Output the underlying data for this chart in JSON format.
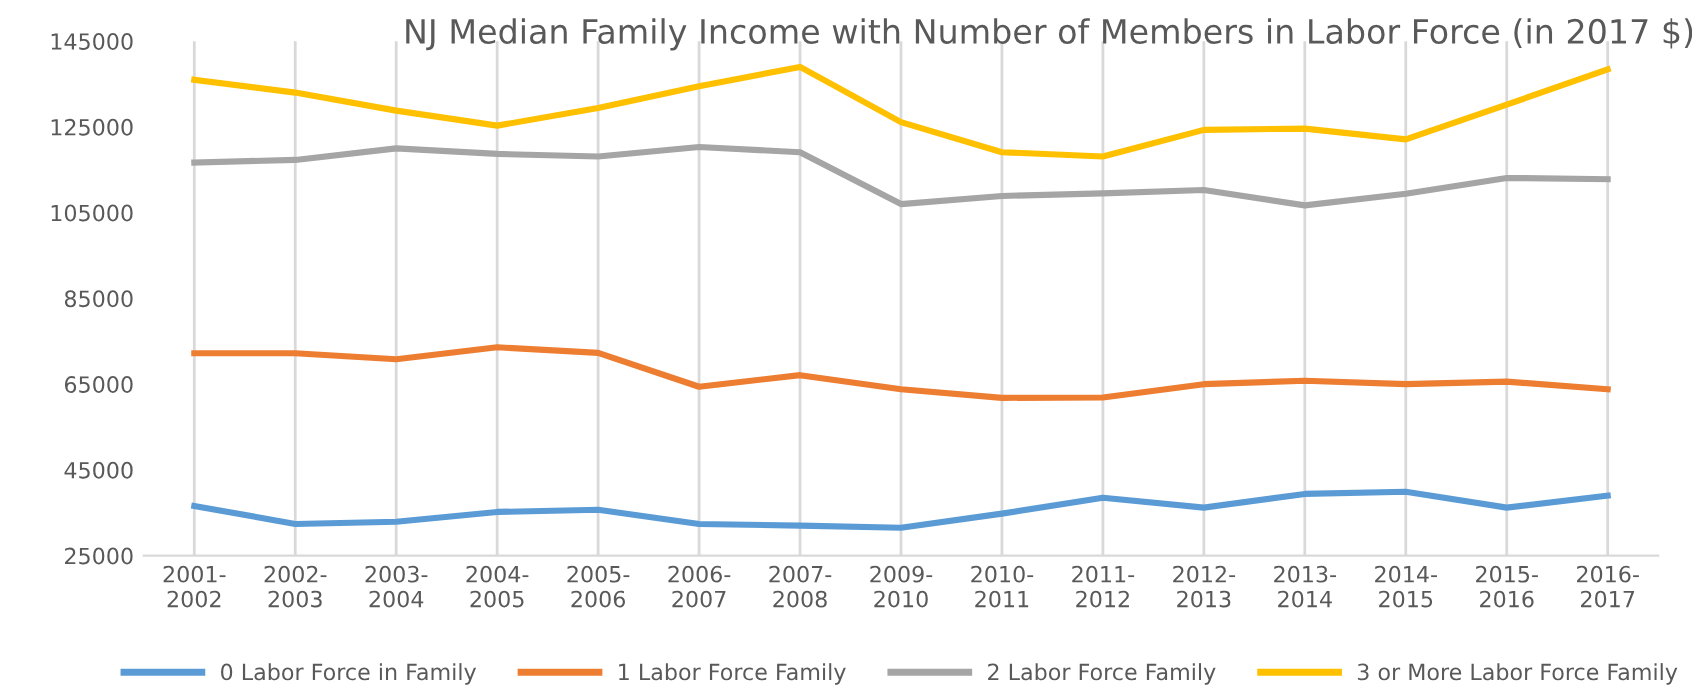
{
  "chart_data": {
    "type": "line",
    "title": "NJ Median Family Income with Number of Members in Labor Force (in 2017 $)",
    "categories": [
      "2001-\n2002",
      "2002-\n2003",
      "2003-\n2004",
      "2004-\n2005",
      "2005-\n2006",
      "2006-\n2007",
      "2007-\n2008",
      "2009-\n2010",
      "2010-\n2011",
      "2011-\n2012",
      "2012-\n2013",
      "2013-\n2014",
      "2014-\n2015",
      "2015-\n2016",
      "2016-\n2017"
    ],
    "series": [
      {
        "name": "0 Labor Force in Family",
        "color": "#5b9bd5",
        "values": [
          36600,
          32400,
          32900,
          35200,
          35700,
          32400,
          32000,
          31500,
          34800,
          38500,
          36200,
          39400,
          39900,
          36200,
          39000
        ]
      },
      {
        "name": "1 Labor Force Family",
        "color": "#ed7d31",
        "values": [
          72200,
          72200,
          70800,
          73600,
          72300,
          64400,
          67100,
          63800,
          61800,
          61900,
          65000,
          65800,
          65000,
          65600,
          63800
        ]
      },
      {
        "name": "2 Labor Force Family",
        "color": "#a5a5a5",
        "values": [
          116700,
          117300,
          120000,
          118700,
          118100,
          120300,
          119100,
          107000,
          108900,
          109500,
          110300,
          106700,
          109400,
          113100,
          112800
        ]
      },
      {
        "name": "3 or More Labor Force Family",
        "color": "#ffc000",
        "values": [
          136000,
          133000,
          128800,
          125300,
          129400,
          134500,
          139000,
          126100,
          119100,
          118100,
          124300,
          124600,
          122100,
          130200,
          138400
        ]
      }
    ],
    "ylim": [
      25000,
      145000
    ],
    "yticks": [
      25000,
      45000,
      65000,
      85000,
      105000,
      125000,
      145000
    ],
    "grid": "x",
    "legend": "bottom",
    "marker": "none",
    "line_style": "solid"
  }
}
